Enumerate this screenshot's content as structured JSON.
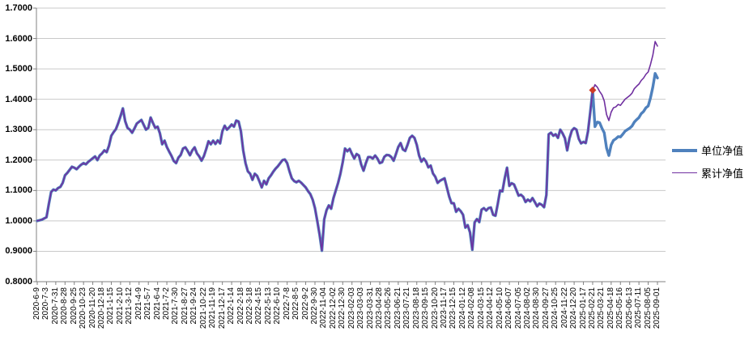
{
  "legend": {
    "items": [
      {
        "label": "单位净值",
        "color": "#4F81BD",
        "thickness": 4
      },
      {
        "label": "累计净值",
        "color": "#7030A0",
        "thickness": 1.6
      }
    ]
  },
  "y_axis": {
    "labels": [
      "1.7000",
      "1.6000",
      "1.5000",
      "1.4000",
      "1.3000",
      "1.2000",
      "1.1000",
      "1.0000",
      "0.9000",
      "0.8000"
    ],
    "min": 0.8,
    "max": 1.7,
    "step": 0.1
  },
  "chart_data": {
    "type": "line",
    "title": "",
    "xlabel": "",
    "ylabel": "",
    "ylim": [
      0.8,
      1.7
    ],
    "grid": true,
    "grid_color": "#C9C9C9",
    "axis_color": "#808080",
    "legend_position": "right",
    "x_tick_labels": [
      "2020-6-9",
      "2020-7-3",
      "2020-7-31",
      "2020-8-28",
      "2020-9-25",
      "2020-10-23",
      "2020-11-20",
      "2020-12-18",
      "2021-1-15",
      "2021-2-10",
      "2021-3-12",
      "2021-4-9",
      "2021-5-7",
      "2021-6-4",
      "2021-7-2",
      "2021-7-30",
      "2021-8-27",
      "2021-9-24",
      "2021-10-22",
      "2021-11-19",
      "2021-12-17",
      "2022-1-14",
      "2022-2-18",
      "2022-3-18",
      "2022-4-15",
      "2022-5-13",
      "2022-6-10",
      "2022-7-8",
      "2022-8-5",
      "2022-9-2",
      "2022-9-30",
      "2022-11-04",
      "2022-12-02",
      "2022-12-30",
      "2023-02-03",
      "2023-03-03",
      "2023-03-31",
      "2023-04-28",
      "2023-05-26",
      "2023-06-21",
      "2023-07-21",
      "2023-08-18",
      "2023-09-15",
      "2023-10-20",
      "2023-11-17",
      "2023-12-15",
      "2024-01-12",
      "2024-02-08",
      "2024-03-15",
      "2024-04-12",
      "2024-05-10",
      "2024-06-07",
      "2024-07-05",
      "2024-08-02",
      "2024-08-30",
      "2024-09-27",
      "2024-10-25",
      "2024-11-22",
      "2024-12-20",
      "2025-01-17",
      "2025-02-21",
      "2025-03-21",
      "2025-04-18",
      "2025-05-16",
      "2025-06-13",
      "2025-07-11",
      "2025-08-05",
      "2025-09-01"
    ],
    "points_per_tick": 4,
    "series": [
      {
        "name": "单位净值",
        "color": "#4F81BD",
        "width": 3.4,
        "values": [
          1.0,
          1.002,
          1.004,
          1.008,
          1.012,
          1.055,
          1.095,
          1.103,
          1.1,
          1.108,
          1.112,
          1.125,
          1.15,
          1.158,
          1.168,
          1.178,
          1.175,
          1.17,
          1.178,
          1.185,
          1.19,
          1.186,
          1.194,
          1.2,
          1.206,
          1.212,
          1.2,
          1.215,
          1.222,
          1.232,
          1.226,
          1.247,
          1.28,
          1.292,
          1.302,
          1.322,
          1.345,
          1.37,
          1.328,
          1.306,
          1.3,
          1.29,
          1.304,
          1.32,
          1.326,
          1.332,
          1.316,
          1.3,
          1.306,
          1.34,
          1.322,
          1.306,
          1.31,
          1.288,
          1.252,
          1.264,
          1.243,
          1.228,
          1.214,
          1.197,
          1.19,
          1.208,
          1.217,
          1.238,
          1.242,
          1.23,
          1.216,
          1.232,
          1.242,
          1.222,
          1.212,
          1.198,
          1.213,
          1.236,
          1.262,
          1.252,
          1.264,
          1.253,
          1.265,
          1.255,
          1.295,
          1.313,
          1.3,
          1.308,
          1.317,
          1.31,
          1.33,
          1.327,
          1.295,
          1.232,
          1.19,
          1.163,
          1.155,
          1.135,
          1.155,
          1.148,
          1.13,
          1.11,
          1.132,
          1.12,
          1.14,
          1.15,
          1.162,
          1.172,
          1.18,
          1.19,
          1.2,
          1.202,
          1.19,
          1.163,
          1.14,
          1.131,
          1.127,
          1.132,
          1.126,
          1.118,
          1.11,
          1.098,
          1.088,
          1.07,
          1.042,
          1.0,
          0.955,
          0.902,
          1.005,
          1.035,
          1.051,
          1.04,
          1.075,
          1.1,
          1.125,
          1.155,
          1.193,
          1.238,
          1.229,
          1.237,
          1.22,
          1.205,
          1.22,
          1.215,
          1.185,
          1.165,
          1.19,
          1.21,
          1.21,
          1.205,
          1.215,
          1.205,
          1.19,
          1.193,
          1.211,
          1.217,
          1.216,
          1.21,
          1.198,
          1.22,
          1.243,
          1.256,
          1.235,
          1.23,
          1.25,
          1.273,
          1.28,
          1.273,
          1.25,
          1.215,
          1.195,
          1.205,
          1.195,
          1.176,
          1.182,
          1.156,
          1.145,
          1.125,
          1.132,
          1.136,
          1.14,
          1.11,
          1.08,
          1.058,
          1.058,
          1.03,
          1.04,
          1.032,
          1.02,
          0.978,
          0.986,
          0.962,
          0.905,
          0.995,
          1.006,
          0.996,
          1.037,
          1.042,
          1.034,
          1.042,
          1.044,
          1.02,
          1.017,
          1.056,
          1.1,
          1.097,
          1.14,
          1.175,
          1.115,
          1.124,
          1.12,
          1.102,
          1.083,
          1.086,
          1.079,
          1.062,
          1.07,
          1.064,
          1.075,
          1.062,
          1.048,
          1.057,
          1.053,
          1.045,
          1.085,
          1.285,
          1.29,
          1.28,
          1.285,
          1.273,
          1.3,
          1.288,
          1.272,
          1.232,
          1.272,
          1.297,
          1.305,
          1.3,
          1.27,
          1.255,
          1.26,
          1.256,
          1.295,
          1.36,
          1.43,
          1.31,
          1.325,
          1.323,
          1.305,
          1.29,
          1.24,
          1.215,
          1.25,
          1.265,
          1.27,
          1.277,
          1.276,
          1.285,
          1.295,
          1.3,
          1.305,
          1.312,
          1.325,
          1.333,
          1.34,
          1.353,
          1.36,
          1.372,
          1.378,
          1.405,
          1.44,
          1.485,
          1.47
        ]
      },
      {
        "name": "累计净值",
        "color": "#7030A0",
        "width": 1.6,
        "split_index": 240,
        "note": "equals 单位净值 before split_index (pre-dividend)",
        "tail_values": [
          1.43,
          1.448,
          1.44,
          1.426,
          1.415,
          1.395,
          1.35,
          1.33,
          1.358,
          1.372,
          1.375,
          1.383,
          1.38,
          1.39,
          1.4,
          1.406,
          1.412,
          1.42,
          1.435,
          1.443,
          1.45,
          1.462,
          1.47,
          1.482,
          1.49,
          1.515,
          1.545,
          1.59,
          1.575
        ]
      }
    ],
    "marker": {
      "shape": "diamond",
      "color": "#CE3B28",
      "at_index": 240,
      "value": 1.43,
      "series": "累计净值"
    }
  }
}
